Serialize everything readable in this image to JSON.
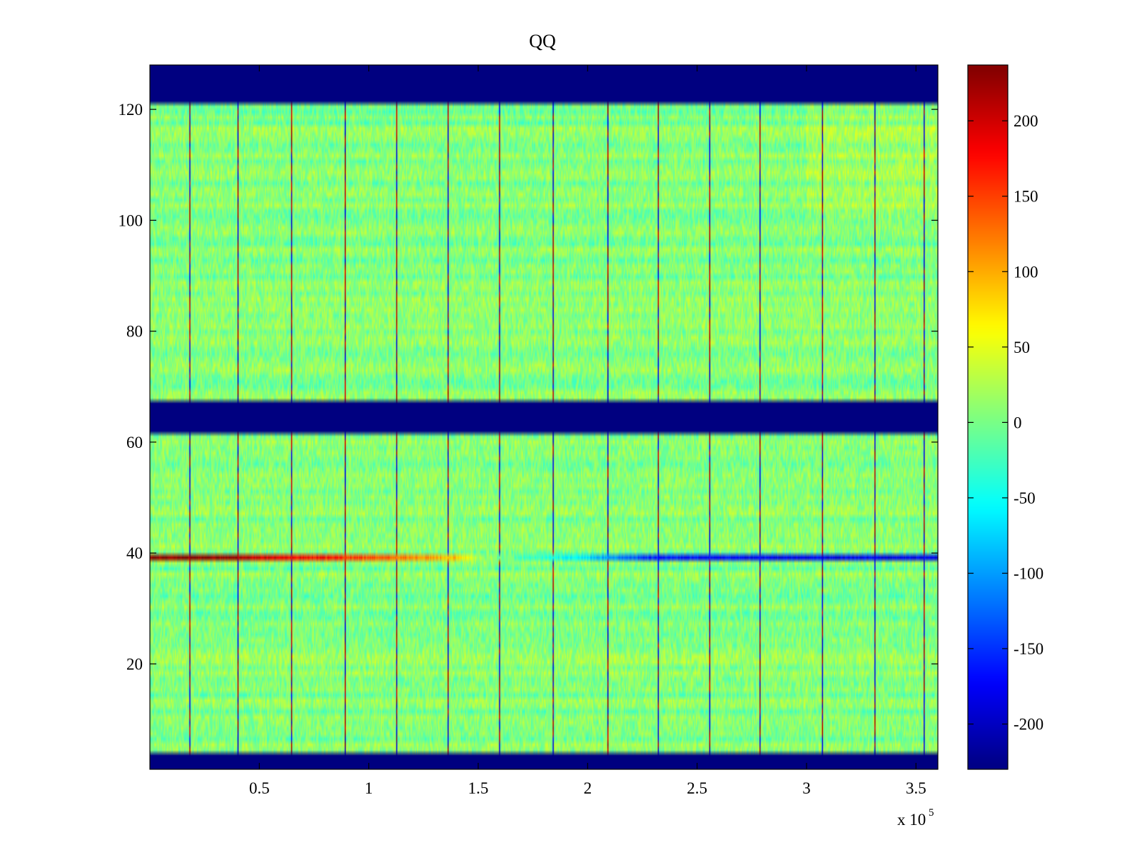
{
  "chart_data": {
    "type": "heatmap",
    "title": "QQ",
    "xlabel": "",
    "ylabel": "",
    "x_range": [
      0,
      360000
    ],
    "y_range": [
      1,
      128
    ],
    "x_ticks": [
      0.5,
      1,
      1.5,
      2,
      2.5,
      3,
      3.5
    ],
    "x_tick_labels": [
      "0.5",
      "1",
      "1.5",
      "2",
      "2.5",
      "3",
      "3.5"
    ],
    "x_exponent_label": "x 10",
    "x_exponent_power": "5",
    "y_ticks": [
      20,
      40,
      60,
      80,
      100,
      120
    ],
    "y_tick_labels": [
      "20",
      "40",
      "60",
      "80",
      "100",
      "120"
    ],
    "colormap": "jet",
    "color_range": [
      -230,
      237
    ],
    "colorbar_ticks": [
      200,
      150,
      100,
      50,
      0,
      -50,
      -100,
      -150,
      -200
    ],
    "colorbar_tick_labels": [
      "200",
      "150",
      "100",
      "50",
      "0",
      "-50",
      "-100",
      "-150",
      "-200"
    ],
    "background_value": -230,
    "filled_row_bands": [
      [
        4,
        61
      ],
      [
        68,
        121
      ]
    ],
    "empty_row_bands": [
      [
        1,
        3
      ],
      [
        62,
        67
      ],
      [
        122,
        128
      ]
    ],
    "vertical_line_x": [
      18000,
      40000,
      64500,
      89000,
      112500,
      136000,
      159500,
      184000,
      209000,
      232000,
      255500,
      278500,
      307000,
      331000,
      353500
    ],
    "highlight_row": {
      "row": 39,
      "x": [
        0,
        30000,
        60000,
        90000,
        120000,
        140000,
        150000,
        170000,
        200000,
        230000,
        260000,
        300000,
        360000
      ],
      "values": [
        237,
        230,
        190,
        160,
        120,
        90,
        20,
        -20,
        -70,
        -160,
        -175,
        -180,
        -180
      ]
    },
    "baseline_noise": {
      "mean": 5,
      "spread": 25
    }
  }
}
